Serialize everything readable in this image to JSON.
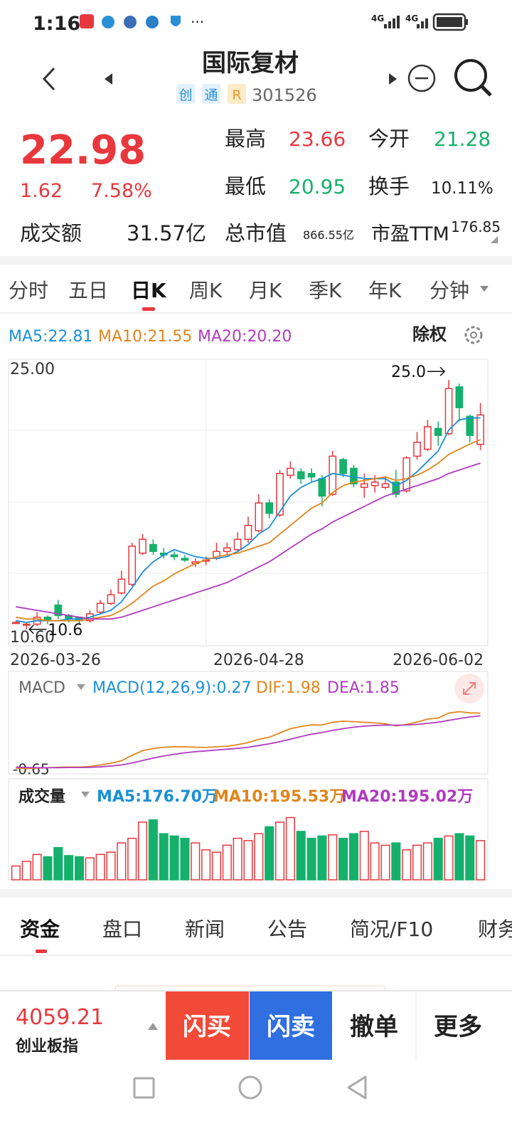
{
  "status_bar": {
    "time": "1:16",
    "network_1": "4G",
    "network_2": "4G"
  },
  "header": {
    "title": "国际复材",
    "tags": [
      "创",
      "通",
      "R"
    ],
    "code": "301526"
  },
  "quote": {
    "price": "22.98",
    "change": "1.62",
    "change_pct": "7.58%",
    "stats": [
      {
        "label": "最高",
        "value": "23.66"
      },
      {
        "label": "今开",
        "value": "21.28"
      },
      {
        "label": "最低",
        "value": "20.95"
      },
      {
        "label": "换手",
        "value": "10.11%"
      },
      {
        "label": "总市值",
        "value": "866.55亿"
      },
      {
        "label": "市盈TTM",
        "value": "176.85"
      }
    ],
    "turnover_label": "成交额",
    "turnover": "31.57亿"
  },
  "period_tabs": [
    "分时",
    "五日",
    "日K",
    "周K",
    "月K",
    "季K",
    "年K",
    "分钟"
  ],
  "kline": {
    "ma_legend": [
      "MA5:22.81",
      "MA10:21.55",
      "MA20:20.20"
    ],
    "adjust": "除权",
    "up_color": "#e8383d",
    "down_color": "#15b06c",
    "ylim": [
      9.65,
      26.2
    ],
    "yticks": [
      {
        "value": 25,
        "label": "25.00"
      },
      {
        "value": 10.6,
        "label": "10.60"
      }
    ],
    "max_mark": {
      "value": 25.0,
      "label": "25.0"
    },
    "min_mark": {
      "value": 10.6,
      "label": "10.6"
    },
    "categories": [
      "2026-03-26",
      null,
      null,
      null,
      null,
      null,
      null,
      null,
      null,
      null,
      null,
      null,
      null,
      null,
      null,
      null,
      null,
      null,
      null,
      null,
      null,
      null,
      null,
      "2026-04-28",
      null,
      null,
      null,
      null,
      null,
      null,
      null,
      null,
      null,
      null,
      null,
      null,
      null,
      null,
      null,
      null,
      null,
      null,
      null,
      null,
      "2026-06-02"
    ],
    "candles": [
      [
        11.0,
        11.0,
        11.1,
        10.9
      ],
      [
        10.9,
        10.9,
        11.0,
        10.6
      ],
      [
        10.9,
        11.3,
        11.6,
        10.8
      ],
      [
        11.3,
        11.1,
        11.4,
        10.9
      ],
      [
        12.0,
        11.4,
        12.3,
        11.2
      ],
      [
        11.4,
        11.2,
        11.5,
        11.0
      ],
      [
        11.3,
        11.1,
        11.3,
        10.9
      ],
      [
        11.1,
        11.5,
        11.7,
        11.0
      ],
      [
        11.6,
        12.1,
        12.3,
        11.5
      ],
      [
        12.1,
        12.6,
        12.9,
        12.0
      ],
      [
        12.7,
        13.5,
        14.0,
        12.6
      ],
      [
        13.2,
        15.4,
        15.6,
        13.1
      ],
      [
        15.0,
        15.8,
        16.1,
        14.9
      ],
      [
        15.5,
        15.1,
        15.8,
        14.9
      ],
      [
        15.0,
        14.9,
        15.3,
        14.7
      ],
      [
        14.9,
        14.8,
        15.1,
        14.6
      ],
      [
        14.7,
        14.6,
        14.9,
        14.5
      ],
      [
        14.4,
        14.5,
        14.7,
        14.2
      ],
      [
        14.6,
        14.6,
        14.8,
        14.3
      ],
      [
        14.7,
        15.1,
        15.6,
        14.6
      ],
      [
        15.1,
        15.3,
        15.6,
        14.9
      ],
      [
        15.2,
        15.8,
        16.2,
        15.1
      ],
      [
        15.8,
        16.6,
        17.1,
        15.6
      ],
      [
        16.3,
        17.9,
        18.4,
        16.2
      ],
      [
        17.9,
        17.3,
        18.1,
        17.0
      ],
      [
        17.2,
        19.6,
        19.8,
        17.1
      ],
      [
        19.5,
        19.9,
        20.3,
        19.3
      ],
      [
        19.7,
        19.3,
        19.9,
        19.0
      ],
      [
        19.6,
        19.4,
        19.9,
        19.1
      ],
      [
        19.3,
        18.3,
        19.5,
        17.7
      ],
      [
        18.4,
        20.6,
        20.9,
        18.3
      ],
      [
        20.4,
        19.6,
        20.5,
        19.4
      ],
      [
        19.9,
        19.0,
        20.1,
        18.8
      ],
      [
        18.8,
        19.0,
        19.6,
        18.2
      ],
      [
        18.9,
        19.1,
        19.5,
        18.5
      ],
      [
        18.8,
        19.0,
        19.4,
        18.7
      ],
      [
        19.1,
        18.4,
        19.8,
        18.2
      ],
      [
        18.6,
        20.5,
        20.6,
        18.5
      ],
      [
        20.6,
        21.4,
        22.0,
        20.4
      ],
      [
        21.0,
        22.3,
        22.7,
        20.9
      ],
      [
        22.2,
        21.8,
        22.6,
        21.2
      ],
      [
        21.9,
        24.5,
        25.0,
        21.8
      ],
      [
        24.6,
        23.4,
        24.8,
        22.6
      ],
      [
        22.9,
        21.8,
        23.0,
        21.4
      ],
      [
        21.28,
        22.98,
        23.66,
        20.95
      ]
    ],
    "ma_lines": [
      {
        "name": "MA5",
        "color": "#1a8fd6",
        "values": [
          11.1,
          11.0,
          11.1,
          11.1,
          11.1,
          11.2,
          11.2,
          11.3,
          11.5,
          11.7,
          12.2,
          13.0,
          13.9,
          14.5,
          14.9,
          15.2,
          15.0,
          14.8,
          14.7,
          14.7,
          14.8,
          15.1,
          15.5,
          16.1,
          16.5,
          17.4,
          18.3,
          18.8,
          19.1,
          19.3,
          19.6,
          19.5,
          19.4,
          19.3,
          19.3,
          19.3,
          18.9,
          19.2,
          19.7,
          20.3,
          20.9,
          22.1,
          22.7,
          22.8,
          22.81
        ]
      },
      {
        "name": "MA10",
        "color": "#e0861c",
        "values": [
          11.3,
          11.2,
          11.2,
          11.1,
          11.1,
          11.1,
          11.1,
          11.2,
          11.3,
          11.4,
          11.7,
          12.1,
          12.6,
          13.1,
          13.4,
          13.8,
          14.1,
          14.4,
          14.6,
          14.8,
          14.9,
          15.0,
          15.2,
          15.4,
          15.6,
          16.1,
          16.6,
          17.1,
          17.6,
          17.9,
          18.5,
          18.9,
          19.1,
          19.2,
          19.3,
          19.4,
          19.2,
          19.3,
          19.5,
          19.8,
          20.2,
          20.7,
          21.0,
          21.3,
          21.55
        ]
      },
      {
        "name": "MA20",
        "color": "#b03bbf",
        "values": [
          11.9,
          11.8,
          11.7,
          11.6,
          11.5,
          11.4,
          11.3,
          11.2,
          11.2,
          11.2,
          11.3,
          11.5,
          11.7,
          11.9,
          12.1,
          12.3,
          12.5,
          12.7,
          12.9,
          13.1,
          13.3,
          13.6,
          13.9,
          14.2,
          14.5,
          14.9,
          15.3,
          15.7,
          16.1,
          16.4,
          16.8,
          17.1,
          17.4,
          17.7,
          18.0,
          18.3,
          18.5,
          18.7,
          18.9,
          19.1,
          19.3,
          19.6,
          19.8,
          20.0,
          20.2
        ]
      }
    ]
  },
  "macd": {
    "label": "MACD",
    "legend": [
      "MACD(12,26,9):0.27",
      "DIF:1.98",
      "DEA:1.85"
    ],
    "ylim": [
      -0.8,
      2.4
    ],
    "yticks": [
      {
        "value": -0.65,
        "label": "-0.65"
      }
    ],
    "series": [
      {
        "name": "DIF",
        "color": "#e0861c",
        "values": [
          -0.6,
          -0.62,
          -0.6,
          -0.58,
          -0.56,
          -0.55,
          -0.55,
          -0.52,
          -0.45,
          -0.37,
          -0.25,
          0.0,
          0.22,
          0.32,
          0.38,
          0.4,
          0.4,
          0.38,
          0.37,
          0.4,
          0.43,
          0.5,
          0.6,
          0.75,
          0.85,
          1.05,
          1.25,
          1.35,
          1.43,
          1.42,
          1.55,
          1.6,
          1.58,
          1.55,
          1.52,
          1.48,
          1.38,
          1.45,
          1.56,
          1.7,
          1.75,
          1.98,
          2.05,
          1.99,
          1.98
        ]
      },
      {
        "name": "DEA",
        "color": "#b03bbf",
        "values": [
          -0.55,
          -0.57,
          -0.58,
          -0.58,
          -0.58,
          -0.57,
          -0.57,
          -0.56,
          -0.54,
          -0.5,
          -0.45,
          -0.36,
          -0.24,
          -0.13,
          -0.03,
          0.05,
          0.12,
          0.17,
          0.21,
          0.25,
          0.29,
          0.33,
          0.38,
          0.46,
          0.54,
          0.64,
          0.76,
          0.88,
          0.99,
          1.07,
          1.17,
          1.25,
          1.32,
          1.37,
          1.4,
          1.42,
          1.41,
          1.42,
          1.45,
          1.5,
          1.55,
          1.64,
          1.72,
          1.8,
          1.85
        ]
      }
    ]
  },
  "volume": {
    "label": "成交量",
    "legend": [
      "MA5:176.70万",
      "MA10:195.53万",
      "MA20:195.02万"
    ],
    "ylim": [
      0,
      330
    ],
    "values": [
      60,
      80,
      110,
      100,
      140,
      105,
      100,
      95,
      110,
      120,
      160,
      180,
      250,
      260,
      200,
      190,
      180,
      160,
      130,
      120,
      150,
      180,
      170,
      200,
      230,
      250,
      270,
      210,
      180,
      190,
      195,
      180,
      200,
      210,
      160,
      150,
      160,
      130,
      150,
      160,
      180,
      190,
      200,
      190,
      170
    ]
  },
  "info_tabs": [
    "资金",
    "盘口",
    "新闻",
    "公告",
    "简况/F10",
    "财务"
  ],
  "bottom_bar": {
    "index_value": "4059.21",
    "index_name": "创业板指",
    "buttons": [
      "闪买",
      "闪卖",
      "撤单",
      "更多"
    ]
  }
}
